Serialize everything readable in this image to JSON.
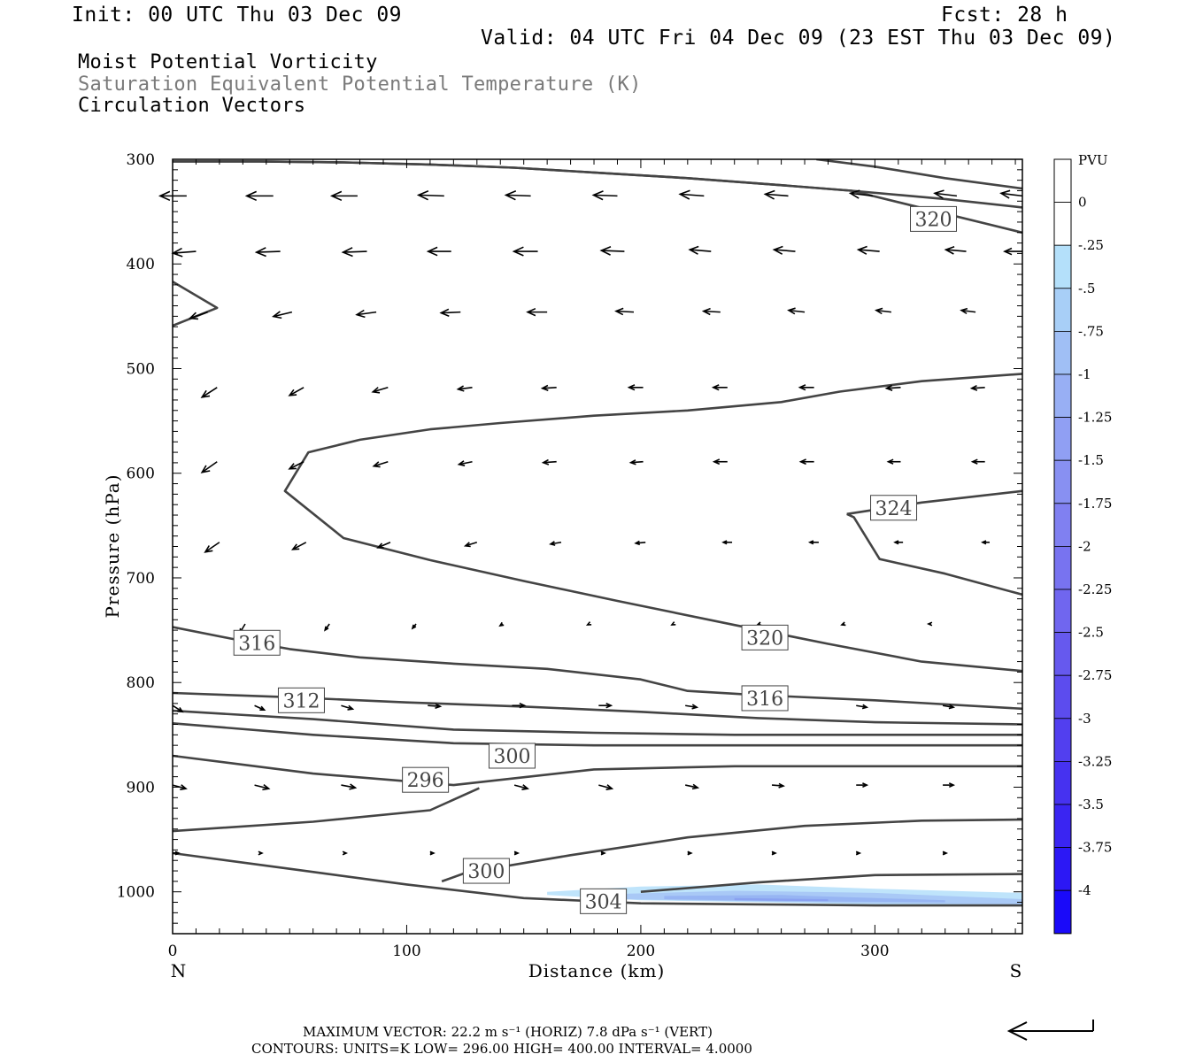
{
  "header": {
    "init": "Init: 00 UTC Thu 03 Dec 09",
    "fcst": "Fcst:   28 h",
    "valid": "Valid: 04 UTC Fri 04 Dec 09 (23 EST Thu 03 Dec 09)",
    "title1": "Moist Potential Vorticity",
    "title2": "Saturation Equivalent Potential Temperature (K)",
    "title3": "Circulation Vectors"
  },
  "footer": {
    "max_vector": "MAXIMUM VECTOR:  22.2 m s⁻¹ (HORIZ)         7.8 dPa s⁻¹ (VERT)",
    "contours": "CONTOURS:  UNITS=K   LOW=   296.00        HIGH=   400.00        INTERVAL=     4.0000"
  },
  "colors": {
    "contour": "#444444",
    "vector": "#000000",
    "pv_shade": [
      "#bfe4fb",
      "#a9c9f6",
      "#97b5f3",
      "#8aa2f1"
    ],
    "colorbar": [
      "#ffffff",
      "#ffffff",
      "#b4e0fa",
      "#a8cff7",
      "#a0bff5",
      "#98aff4",
      "#909ff3",
      "#8890f2",
      "#8080f1",
      "#7873f0",
      "#7066ef",
      "#6659ee",
      "#5c4cee",
      "#523fef",
      "#4632f0",
      "#3a25f2",
      "#2c18f5",
      "#1a0af9"
    ]
  },
  "chart_data": {
    "type": "cross-section contour + vector",
    "xlabel": "Distance (km)",
    "ylabel": "Pressure (hPa)",
    "xlim": [
      0,
      363
    ],
    "ylim": [
      1040,
      300
    ],
    "x_ticks": [
      0,
      100,
      200,
      300
    ],
    "y_ticks": [
      300,
      400,
      500,
      600,
      700,
      800,
      900,
      1000
    ],
    "x_end_labels": {
      "left": "N",
      "right": "S"
    },
    "colorbar": {
      "unit": "PVU",
      "labels": [
        "0",
        "-.25",
        "-.5",
        "-.75",
        "-1",
        "-1.25",
        "-1.5",
        "-1.75",
        "-2",
        "-2.25",
        "-2.5",
        "-2.75",
        "-3",
        "-3.25",
        "-3.5",
        "-3.75",
        "-4"
      ]
    },
    "contour_labels": [
      {
        "text": "320",
        "x": 325,
        "p": 357
      },
      {
        "text": "324",
        "x": 308,
        "p": 633
      },
      {
        "text": "320",
        "x": 253,
        "p": 757
      },
      {
        "text": "316",
        "x": 36,
        "p": 762
      },
      {
        "text": "316",
        "x": 253,
        "p": 815
      },
      {
        "text": "312",
        "x": 55,
        "p": 817
      },
      {
        "text": "300",
        "x": 145,
        "p": 870
      },
      {
        "text": "296",
        "x": 108,
        "p": 893
      },
      {
        "text": "300",
        "x": 134,
        "p": 980
      },
      {
        "text": "304",
        "x": 184,
        "p": 1009
      }
    ],
    "contours": [
      {
        "x": [
          0,
          37,
          73,
          110,
          146,
          183,
          220,
          256,
          290,
          330,
          363
        ],
        "p": [
          302,
          302,
          303,
          305,
          308,
          313,
          318,
          324,
          330,
          338,
          346
        ]
      },
      {
        "x": [
          275,
          300,
          330,
          363
        ],
        "p": [
          300,
          307,
          318,
          328
        ]
      },
      {
        "x": [
          0,
          37,
          73,
          110,
          146,
          183,
          220,
          256,
          290,
          363
        ],
        "p": [
          302,
          302,
          303,
          305,
          308,
          313,
          318,
          324,
          330,
          370
        ]
      },
      {
        "x": [
          0,
          19,
          0
        ],
        "p": [
          417,
          442,
          459
        ]
      },
      {
        "x": [
          363,
          320,
          285,
          260,
          220,
          180,
          140,
          110,
          80,
          58,
          48,
          73,
          110,
          150,
          190,
          240,
          280,
          320,
          363
        ],
        "p": [
          505,
          512,
          522,
          532,
          540,
          545,
          552,
          558,
          568,
          580,
          617,
          662,
          683,
          703,
          722,
          745,
          763,
          780,
          789
        ]
      },
      {
        "x": [
          288,
          291,
          302,
          330,
          363
        ],
        "p": [
          639,
          642,
          682,
          696,
          716
        ]
      },
      {
        "x": [
          288,
          320,
          363
        ],
        "p": [
          639,
          628,
          617
        ]
      },
      {
        "x": [
          0,
          25,
          50,
          80,
          120,
          160,
          200,
          220,
          250,
          300,
          363
        ],
        "p": [
          747,
          758,
          768,
          776,
          782,
          787,
          797,
          808,
          812,
          817,
          825
        ]
      },
      {
        "x": [
          0,
          50,
          100,
          150,
          200,
          250,
          300,
          363
        ],
        "p": [
          810,
          814,
          819,
          823,
          828,
          834,
          838,
          840
        ]
      },
      {
        "x": [
          0,
          60,
          120,
          180,
          240,
          300,
          363
        ],
        "p": [
          827,
          835,
          845,
          848,
          850,
          850,
          850
        ]
      },
      {
        "x": [
          0,
          60,
          120,
          180,
          240,
          300,
          363
        ],
        "p": [
          839,
          850,
          858,
          860,
          860,
          860,
          860
        ]
      },
      {
        "x": [
          0,
          60,
          120,
          180,
          240,
          300,
          363
        ],
        "p": [
          870,
          887,
          898,
          883,
          880,
          880,
          880
        ]
      },
      {
        "x": [
          0,
          60,
          110,
          131
        ],
        "p": [
          942,
          933,
          922,
          901
        ]
      },
      {
        "x": [
          115,
          125,
          170,
          220,
          270,
          320,
          363
        ],
        "p": [
          990,
          982,
          965,
          948,
          937,
          932,
          931
        ]
      },
      {
        "x": [
          0,
          50,
          100,
          150,
          200,
          250,
          300,
          363
        ],
        "p": [
          963,
          978,
          993,
          1006,
          1011,
          1012,
          1013,
          1013
        ]
      },
      {
        "x": [
          200,
          250,
          300,
          363
        ],
        "p": [
          1000,
          991,
          984,
          983
        ]
      }
    ],
    "pv_shading": [
      {
        "x": [
          160,
          200,
          250,
          300,
          363,
          363,
          300,
          250,
          200,
          160
        ],
        "p": [
          1000,
          995,
          993,
          997,
          1001,
          1014,
          1012,
          1010,
          1008,
          1003
        ],
        "level": 0
      },
      {
        "x": [
          190,
          240,
          300,
          363,
          363,
          300,
          240,
          190
        ],
        "p": [
          1002,
          999,
          1001,
          1007,
          1012,
          1011,
          1009,
          1007
        ],
        "level": 1
      },
      {
        "x": [
          210,
          260,
          330,
          330,
          260,
          210
        ],
        "p": [
          1004,
          1003,
          1008,
          1010,
          1009,
          1007
        ],
        "level": 2
      },
      {
        "x": [
          240,
          280,
          280,
          240
        ],
        "p": [
          1006,
          1007,
          1009,
          1008
        ],
        "level": 3
      }
    ],
    "vectors": [
      {
        "x": [
          6,
          43,
          79,
          116,
          153,
          190,
          227,
          263,
          299,
          335,
          363
        ],
        "p": 335,
        "dx": [
          -30,
          -30,
          -29,
          -29,
          -28,
          -27,
          -27,
          -26,
          -25,
          -25,
          -24
        ],
        "dp": [
          0,
          0,
          0,
          -1,
          -1,
          -1,
          -2,
          -2,
          -3,
          -3,
          -3
        ]
      },
      {
        "x": [
          10,
          46,
          83,
          119,
          156,
          193,
          230,
          266,
          302,
          339,
          363
        ],
        "p": 388,
        "dx": [
          -26,
          -27,
          -27,
          -26,
          -27,
          -26,
          -24,
          -24,
          -24,
          -23,
          -20
        ],
        "dp": [
          2,
          1,
          1,
          0,
          0,
          -1,
          -2,
          -2,
          -2,
          -2,
          0
        ]
      },
      {
        "x": [
          15,
          51,
          87,
          123,
          160,
          197,
          234,
          270,
          307,
          343
        ],
        "p": 446,
        "dx": [
          -20,
          -21,
          -22,
          -22,
          -22,
          -20,
          -19,
          -18,
          -17,
          -16
        ],
        "dp": [
          7,
          5,
          3,
          1,
          0,
          -1,
          -1,
          -2,
          -2,
          -2
        ]
      },
      {
        "x": [
          19,
          56,
          92,
          128,
          164,
          201,
          237,
          274,
          311,
          347
        ],
        "p": 518,
        "dx": [
          -17,
          -16,
          -17,
          -16,
          -16,
          -16,
          -16,
          -16,
          -16,
          -15
        ],
        "dp": [
          11,
          9,
          5,
          2,
          1,
          0,
          0,
          0,
          1,
          1
        ]
      },
      {
        "x": [
          19,
          56,
          92,
          128,
          164,
          201,
          237,
          274,
          311,
          347
        ],
        "p": 589,
        "dx": [
          -17,
          -16,
          -16,
          -15,
          -15,
          -14,
          -15,
          -15,
          -14,
          -14
        ],
        "dp": [
          12,
          8,
          5,
          3,
          1,
          1,
          0,
          0,
          0,
          0
        ]
      },
      {
        "x": [
          20,
          57,
          93,
          130,
          166,
          202,
          239,
          276,
          312,
          349
        ],
        "p": 666,
        "dx": [
          -16,
          -15,
          -14,
          -13,
          -12,
          -11,
          -10,
          -10,
          -9,
          -8
        ],
        "dp": [
          11,
          8,
          6,
          4,
          2,
          1,
          0,
          0,
          0,
          0
        ]
      },
      {
        "x": [
          31,
          67,
          104,
          141,
          178,
          214,
          251,
          287,
          324
        ],
        "p": 744,
        "dx": [
          -6,
          -5,
          -4,
          -3,
          -2,
          -2,
          -3,
          -3,
          -3
        ],
        "dp": [
          10,
          7,
          5,
          2,
          1,
          1,
          1,
          1,
          0
        ]
      },
      {
        "x": [
          0,
          35,
          72,
          109,
          145,
          182,
          219,
          256,
          292,
          329
        ],
        "p": 822,
        "dx": [
          11,
          11,
          13,
          14,
          14,
          14,
          13,
          12,
          12,
          12
        ],
        "dp": [
          7,
          5,
          4,
          1,
          0,
          0,
          2,
          2,
          2,
          2
        ]
      },
      {
        "x": [
          0,
          35,
          72,
          109,
          146,
          182,
          219,
          256,
          292,
          329
        ],
        "p": 898,
        "dx": [
          15,
          16,
          16,
          15,
          15,
          15,
          14,
          13,
          12,
          12
        ],
        "dp": [
          4,
          4,
          3,
          2,
          4,
          4,
          3,
          1,
          0,
          0
        ]
      },
      {
        "x": [
          0,
          37,
          73,
          110,
          146,
          183,
          220,
          256,
          292,
          329
        ],
        "p": 963,
        "dx": [
          7,
          3,
          3,
          4,
          4,
          4,
          4,
          4,
          4,
          4
        ],
        "dp": [
          0,
          0,
          0,
          0,
          0,
          0,
          0,
          0,
          0,
          0
        ]
      }
    ]
  }
}
